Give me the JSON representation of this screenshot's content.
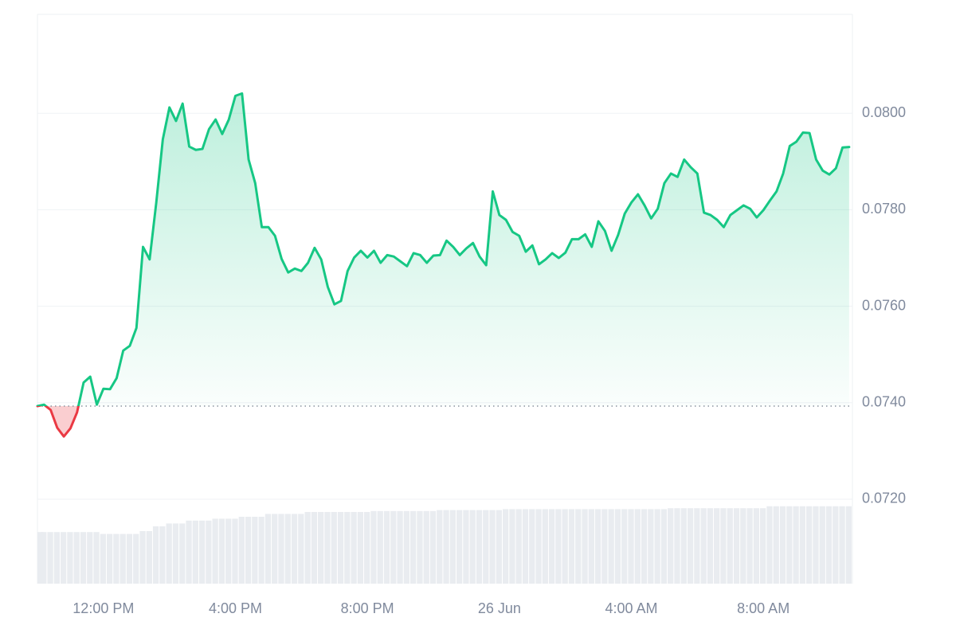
{
  "chart_data": {
    "type": "line",
    "x": [
      10,
      10.2,
      10.4,
      10.6,
      10.8,
      11,
      11.2,
      11.4,
      11.6,
      11.8,
      12,
      12.2,
      12.4,
      12.6,
      12.8,
      13,
      13.2,
      13.4,
      13.6,
      13.8,
      14,
      14.2,
      14.4,
      14.6,
      14.8,
      15,
      15.2,
      15.4,
      15.6,
      15.8,
      16,
      16.2,
      16.4,
      16.6,
      16.8,
      17,
      17.2,
      17.4,
      17.6,
      17.8,
      18,
      18.2,
      18.4,
      18.6,
      18.8,
      19,
      19.2,
      19.4,
      19.6,
      19.8,
      20,
      20.2,
      20.4,
      20.6,
      20.8,
      21,
      21.2,
      21.4,
      21.6,
      21.8,
      22,
      22.2,
      22.4,
      22.6,
      22.8,
      23,
      23.2,
      23.4,
      23.6,
      23.8,
      24,
      24.2,
      24.4,
      24.6,
      24.8,
      25,
      25.2,
      25.4,
      25.6,
      25.8,
      26,
      26.2,
      26.4,
      26.6,
      26.8,
      27,
      27.2,
      27.4,
      27.6,
      27.8,
      28,
      28.2,
      28.4,
      28.6,
      28.8,
      29,
      29.2,
      29.4,
      29.6,
      29.8,
      30,
      30.2,
      30.4,
      30.6,
      30.8,
      31,
      31.2,
      31.4,
      31.6,
      31.8,
      32,
      32.2,
      32.4,
      32.6,
      32.8,
      33,
      33.2,
      33.4,
      33.6,
      33.8,
      34,
      34.2,
      34.4,
      34.6
    ],
    "values": [
      0.07393,
      0.07396,
      0.07385,
      0.07348,
      0.0733,
      0.07347,
      0.0738,
      0.07442,
      0.07454,
      0.07396,
      0.07429,
      0.07428,
      0.07451,
      0.07508,
      0.07518,
      0.07555,
      0.07723,
      0.07697,
      0.07814,
      0.07946,
      0.08012,
      0.07984,
      0.0802,
      0.07931,
      0.07924,
      0.07926,
      0.07967,
      0.07987,
      0.07957,
      0.07987,
      0.08036,
      0.08041,
      0.07904,
      0.07855,
      0.07764,
      0.07764,
      0.07746,
      0.07698,
      0.0767,
      0.07678,
      0.07673,
      0.0769,
      0.07721,
      0.07697,
      0.0764,
      0.07604,
      0.07611,
      0.07673,
      0.07701,
      0.07715,
      0.07701,
      0.07715,
      0.0769,
      0.07706,
      0.07703,
      0.07693,
      0.07683,
      0.0771,
      0.07706,
      0.0769,
      0.07705,
      0.07706,
      0.07736,
      0.07723,
      0.07706,
      0.0772,
      0.07731,
      0.07703,
      0.07685,
      0.07838,
      0.07789,
      0.07779,
      0.07754,
      0.07746,
      0.07713,
      0.07726,
      0.07687,
      0.07697,
      0.0771,
      0.077,
      0.07711,
      0.07739,
      0.07739,
      0.07749,
      0.07723,
      0.07776,
      0.07756,
      0.07715,
      0.07748,
      0.07792,
      0.07815,
      0.07832,
      0.07809,
      0.07782,
      0.07802,
      0.07855,
      0.07875,
      0.07868,
      0.07904,
      0.07888,
      0.07875,
      0.07794,
      0.07789,
      0.07779,
      0.07764,
      0.07789,
      0.07799,
      0.07809,
      0.07802,
      0.07784,
      0.07799,
      0.07819,
      0.07838,
      0.07875,
      0.07932,
      0.07941,
      0.0796,
      0.07959,
      0.07904,
      0.07881,
      0.07873,
      0.07886,
      0.07929,
      0.0793
    ],
    "color": "#16c784",
    "below_color": "#ea3943",
    "baseline": 0.07393,
    "xlim": [
      10,
      34.7
    ],
    "xticks": [
      {
        "value": 12,
        "label": "12:00 PM"
      },
      {
        "value": 16,
        "label": "4:00 PM"
      },
      {
        "value": 20,
        "label": "8:00 PM"
      },
      {
        "value": 24,
        "label": "26 Jun"
      },
      {
        "value": 28,
        "label": "4:00 AM"
      },
      {
        "value": 32,
        "label": "8:00 AM"
      }
    ],
    "ylim": [
      0.07025,
      0.08205
    ],
    "yticks": [
      {
        "value": 0.072,
        "label": "0.0720"
      },
      {
        "value": 0.074,
        "label": "0.0740"
      },
      {
        "value": 0.076,
        "label": "0.0760"
      },
      {
        "value": 0.078,
        "label": "0.0780"
      },
      {
        "value": 0.08,
        "label": "0.0800"
      }
    ],
    "grid": true,
    "volume": {
      "color": "#e9ecf0",
      "ylim": [
        0,
        100
      ],
      "values": [
        54,
        54,
        54,
        54,
        54,
        54,
        54,
        54,
        54,
        54,
        52,
        52,
        52,
        52,
        52,
        52,
        55,
        55,
        60,
        60,
        63,
        63,
        63,
        66,
        66,
        66,
        66,
        68,
        68,
        68,
        68,
        70,
        70,
        70,
        70,
        73,
        73,
        73,
        73,
        73,
        73,
        75,
        75,
        75,
        75,
        75,
        75,
        75,
        75,
        75,
        75,
        76,
        76,
        76,
        76,
        76,
        76,
        76,
        76,
        76,
        76,
        77,
        77,
        77,
        77,
        77,
        77,
        77,
        77,
        77,
        77,
        78,
        78,
        78,
        78,
        78,
        78,
        78,
        78,
        78,
        78,
        78,
        78,
        78,
        78,
        78,
        78,
        78,
        78,
        78,
        78,
        78,
        78,
        78,
        78,
        78,
        79,
        79,
        79,
        79,
        79,
        79,
        79,
        79,
        79,
        79,
        79,
        79,
        79,
        79,
        79,
        81,
        81,
        81,
        81,
        81,
        81,
        81,
        81,
        81,
        81,
        81,
        81,
        81
      ]
    }
  }
}
